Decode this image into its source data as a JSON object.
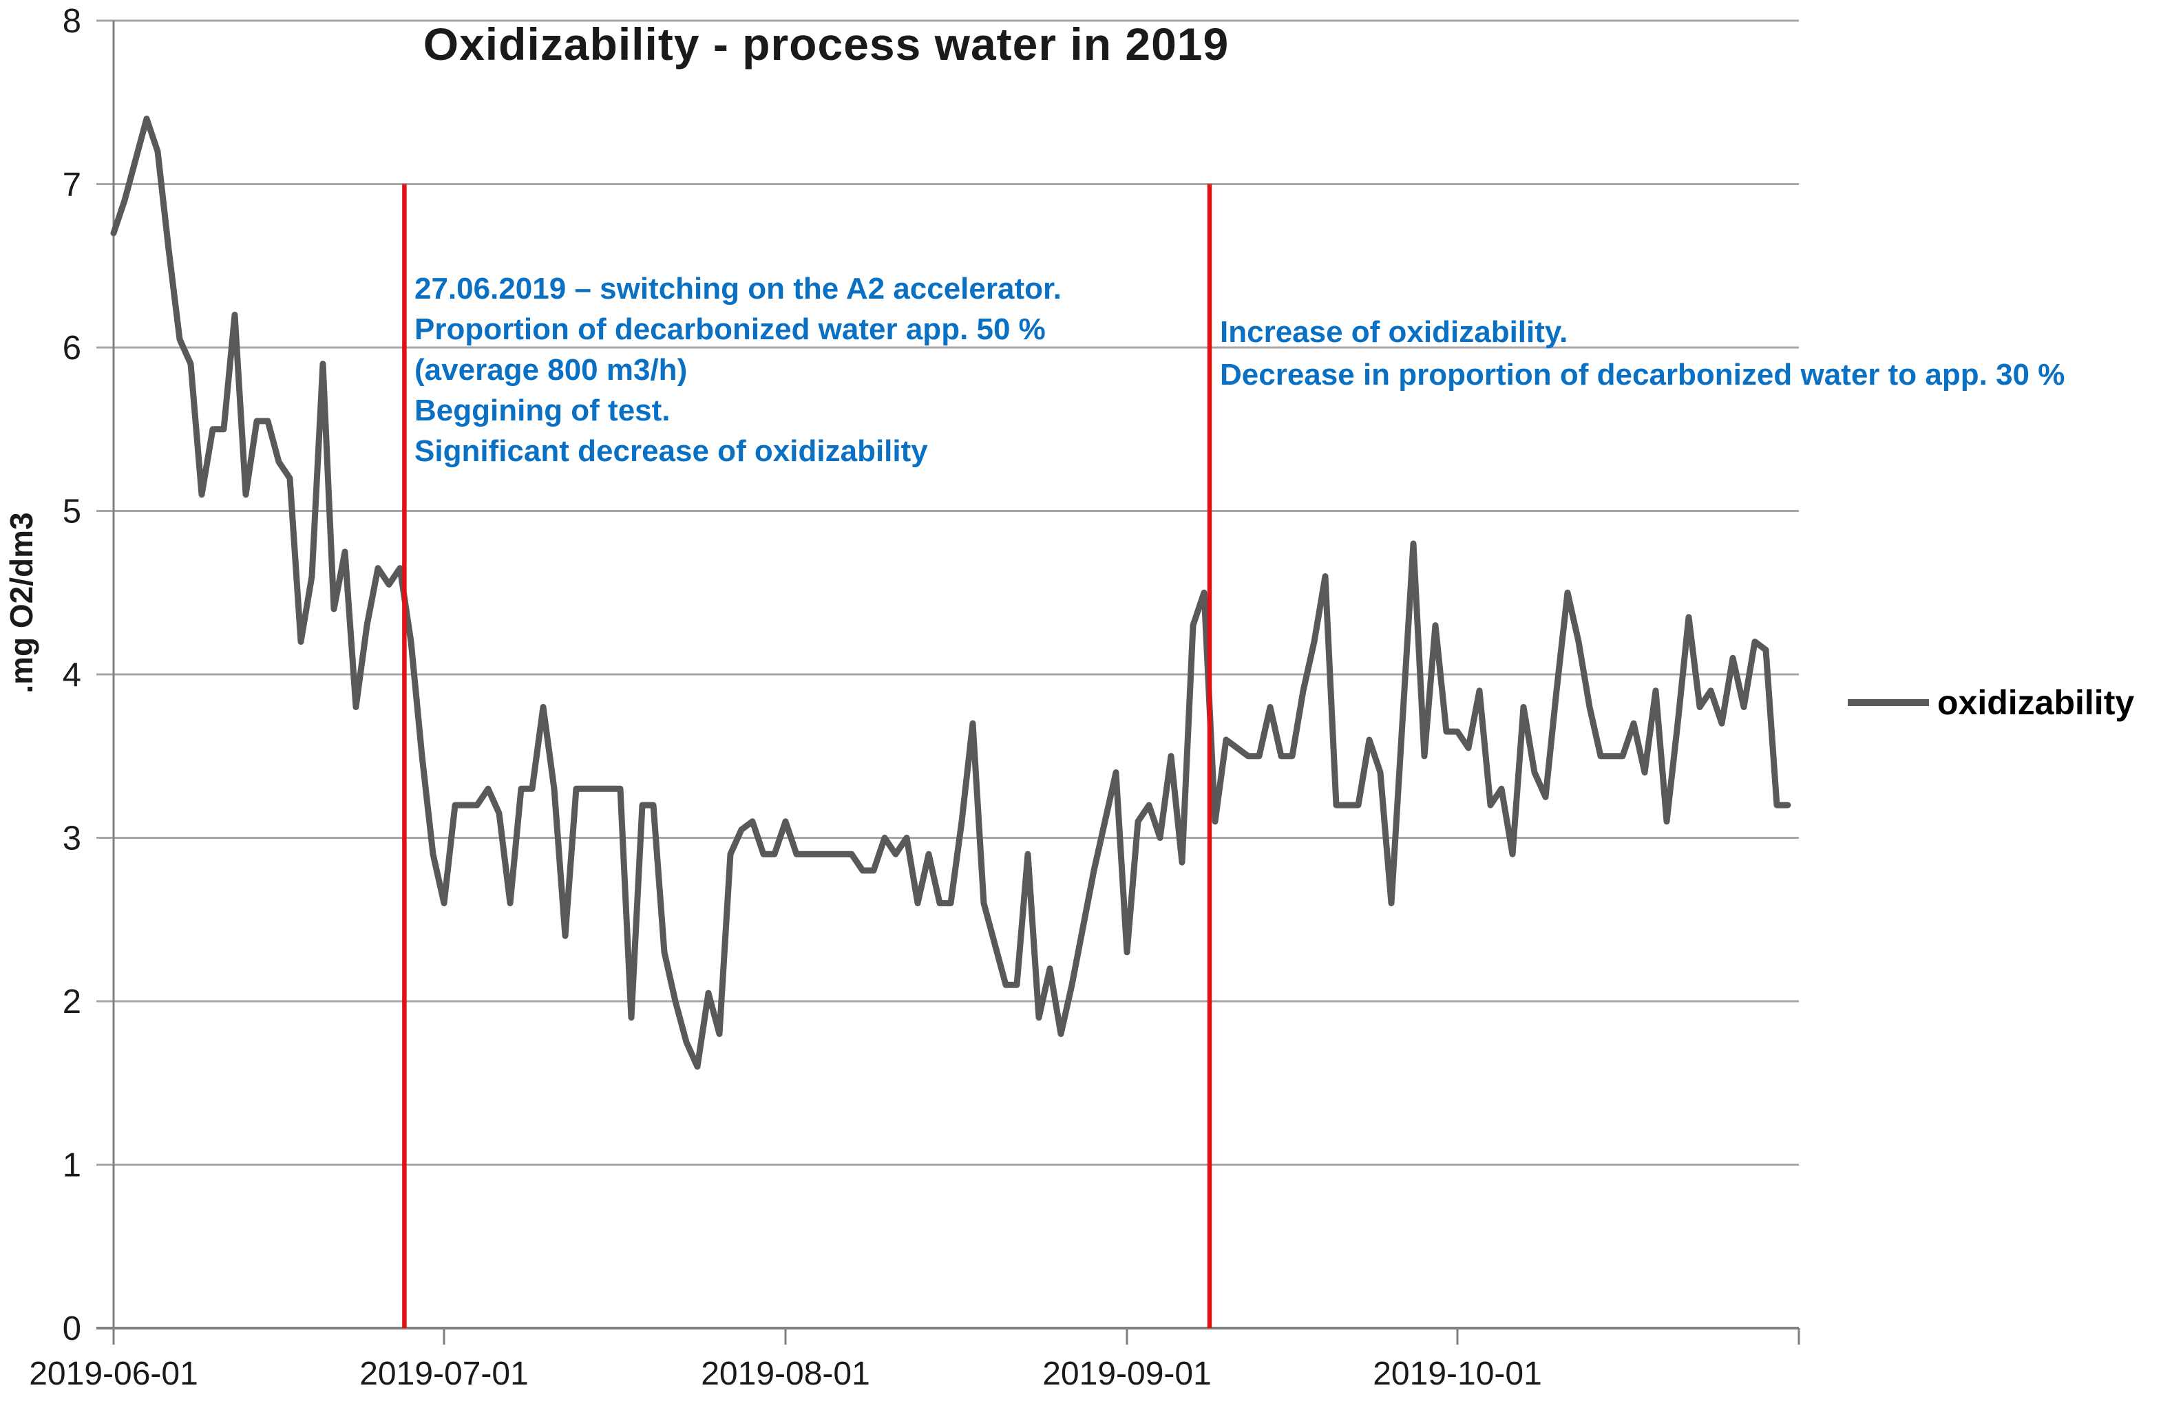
{
  "title": "Oxidizability - process water in 2019",
  "y_axis": {
    "label": ".mg O2/dm3"
  },
  "legend": {
    "label": "oxidizability"
  },
  "annotations": {
    "accelerator_note": {
      "lines": [
        "27.06.2019 – switching on the A2 accelerator.",
        "Proportion of decarbonized water app. 50 %",
        "(average 800 m3/h)",
        "Beggining of test.",
        "Significant decrease of oxidizability"
      ]
    },
    "increase_note": {
      "lines": [
        "Increase of oxidizability.",
        "Decrease in proportion of decarbonized water to app. 30 %"
      ]
    }
  },
  "colors": {
    "series": "#595959",
    "red_marker": "#e01212",
    "annotation_blue": "#0a70c4",
    "gridline": "#a6a6a6",
    "axis": "#808080",
    "text": "#1a1a1a"
  },
  "chart_data": {
    "type": "line",
    "title": "Oxidizability - process water in 2019",
    "ylabel": ".mg O2/dm3",
    "xlabel": "",
    "ylim": [
      0,
      8
    ],
    "y_ticks": [
      0,
      1,
      2,
      3,
      4,
      5,
      6,
      7,
      8
    ],
    "grid": "horizontal",
    "legend_position": "right",
    "x_unit": "day (daily measurements)",
    "start_date": "2019-06-01",
    "end_date": "2019-10-31",
    "x_tick_labels": [
      "2019-06-01",
      "2019-07-01",
      "2019-08-01",
      "2019-09-01",
      "2019-10-01"
    ],
    "x_tick_days": [
      0,
      30,
      61,
      92,
      122
    ],
    "x_axis_end_day": 153,
    "series": [
      {
        "name": "oxidizability",
        "color": "#595959",
        "values": [
          6.7,
          6.9,
          7.15,
          7.4,
          7.2,
          6.6,
          6.05,
          5.9,
          5.1,
          5.5,
          5.5,
          6.2,
          5.1,
          5.55,
          5.55,
          5.3,
          5.2,
          4.2,
          4.6,
          5.9,
          4.4,
          4.75,
          3.8,
          4.3,
          4.65,
          4.55,
          4.65,
          4.2,
          3.5,
          2.9,
          2.6,
          3.2,
          3.2,
          3.2,
          3.3,
          3.15,
          2.6,
          3.3,
          3.3,
          3.8,
          3.3,
          2.4,
          3.3,
          3.3,
          3.3,
          3.3,
          3.3,
          1.9,
          3.2,
          3.2,
          2.3,
          2.0,
          1.75,
          1.6,
          2.05,
          1.8,
          2.9,
          3.05,
          3.1,
          2.9,
          2.9,
          3.1,
          2.9,
          2.9,
          2.9,
          2.9,
          2.9,
          2.9,
          2.8,
          2.8,
          3.0,
          2.9,
          3.0,
          2.6,
          2.9,
          2.6,
          2.6,
          3.1,
          3.7,
          2.6,
          2.35,
          2.1,
          2.1,
          2.9,
          1.9,
          2.2,
          1.8,
          2.1,
          2.45,
          2.8,
          3.1,
          3.4,
          2.3,
          3.1,
          3.2,
          3.0,
          3.5,
          2.85,
          4.3,
          4.5,
          3.1,
          3.6,
          3.55,
          3.5,
          3.5,
          3.8,
          3.5,
          3.5,
          3.9,
          4.2,
          4.6,
          3.2,
          3.2,
          3.2,
          3.6,
          3.4,
          2.6,
          3.7,
          4.8,
          3.5,
          4.3,
          3.65,
          3.65,
          3.55,
          3.9,
          3.2,
          3.3,
          2.9,
          3.8,
          3.4,
          3.25,
          3.9,
          4.5,
          4.2,
          3.8,
          3.5,
          3.5,
          3.5,
          3.7,
          3.4,
          3.9,
          3.1,
          3.7,
          4.35,
          3.8,
          3.9,
          3.7,
          4.1,
          3.8,
          4.2,
          4.15,
          3.2,
          3.2
        ]
      }
    ],
    "vlines": [
      {
        "date": "2019-06-27",
        "day": 26.4,
        "from": 0,
        "to": 7,
        "color": "#e01212"
      },
      {
        "date": "2019-09-09",
        "day": 99.5,
        "from": 0,
        "to": 7,
        "color": "#e01212"
      }
    ]
  }
}
